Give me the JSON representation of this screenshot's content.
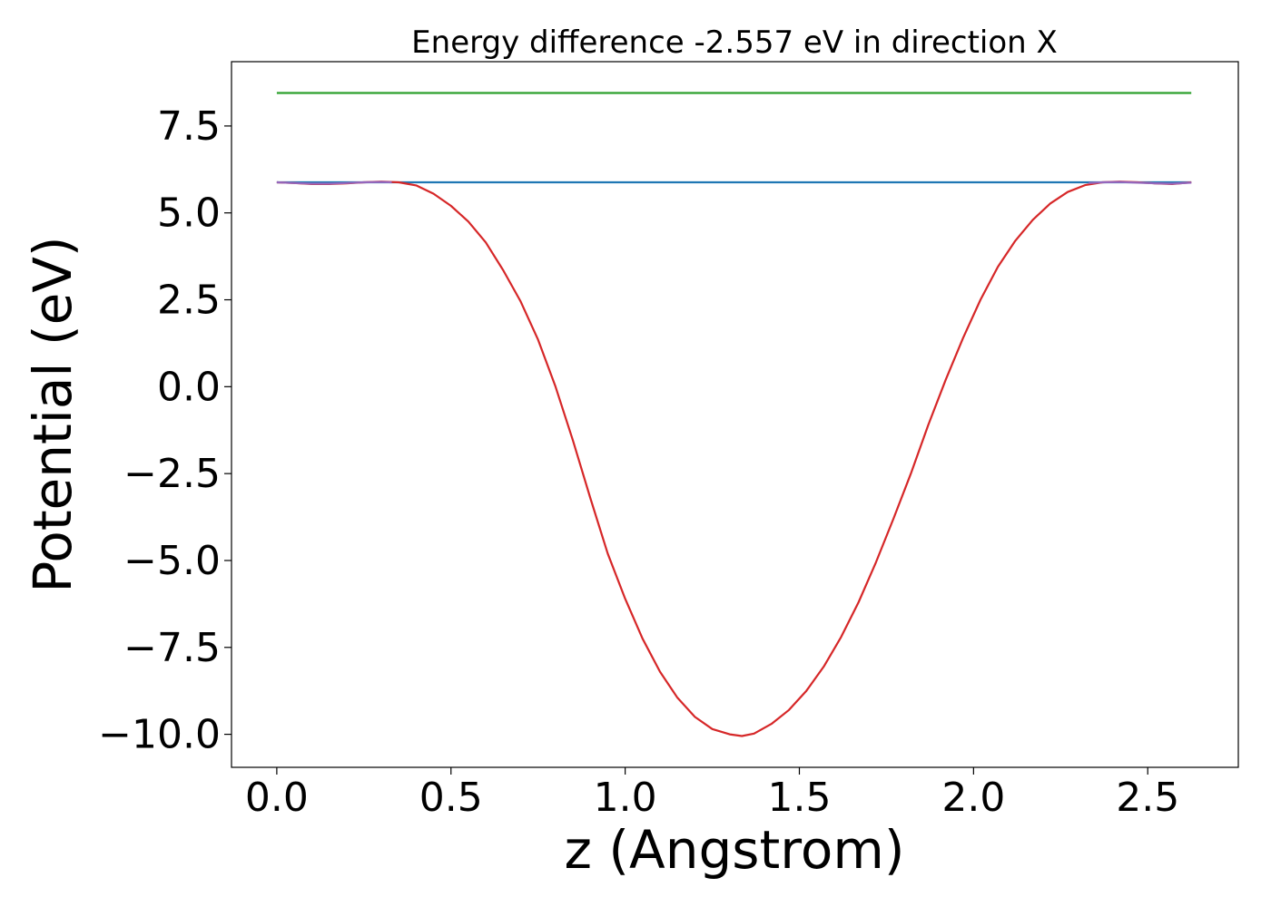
{
  "chart_data": {
    "type": "line",
    "title": "Energy difference -2.557 eV in direction X",
    "xlabel": "z (Angstrom)",
    "ylabel": "Potential (eV)",
    "xlim": [
      -0.13,
      2.76
    ],
    "ylim": [
      -10.95,
      9.35
    ],
    "xticks": [
      0.0,
      0.5,
      1.0,
      1.5,
      2.0,
      2.5
    ],
    "xtick_labels": [
      "0.0",
      "0.5",
      "1.0",
      "1.5",
      "2.0",
      "2.5"
    ],
    "yticks": [
      7.5,
      5.0,
      2.5,
      0.0,
      -2.5,
      -5.0,
      -7.5,
      -10.0
    ],
    "ytick_labels": [
      "7.5",
      "5.0",
      "2.5",
      "0.0",
      "−2.5",
      "−5.0",
      "−7.5",
      "−10.0"
    ],
    "grid": false,
    "legend": "none",
    "series": [
      {
        "color": "#2ca02c",
        "x": [
          0.0,
          2.625
        ],
        "y": [
          8.45,
          8.45
        ]
      },
      {
        "color": "#1f77b4",
        "x": [
          0.0,
          2.625
        ],
        "y": [
          5.88,
          5.88
        ]
      },
      {
        "color": "#d62728",
        "x": [
          0.0,
          0.05,
          0.1,
          0.15,
          0.2,
          0.25,
          0.3,
          0.35,
          0.4,
          0.45,
          0.5,
          0.55,
          0.6,
          0.65,
          0.7,
          0.75,
          0.8,
          0.85,
          0.9,
          0.95,
          1.0,
          1.05,
          1.1,
          1.15,
          1.2,
          1.25,
          1.3,
          1.335,
          1.37,
          1.42,
          1.47,
          1.52,
          1.57,
          1.62,
          1.67,
          1.72,
          1.77,
          1.82,
          1.87,
          1.92,
          1.97,
          2.02,
          2.07,
          2.12,
          2.17,
          2.22,
          2.27,
          2.32,
          2.37,
          2.42,
          2.47,
          2.52,
          2.57,
          2.625
        ],
        "y": [
          5.88,
          5.86,
          5.83,
          5.83,
          5.85,
          5.88,
          5.9,
          5.88,
          5.79,
          5.55,
          5.2,
          4.75,
          4.15,
          3.35,
          2.45,
          1.35,
          0.0,
          -1.55,
          -3.2,
          -4.8,
          -6.1,
          -7.25,
          -8.2,
          -8.95,
          -9.5,
          -9.85,
          -10.0,
          -10.05,
          -9.98,
          -9.7,
          -9.3,
          -8.75,
          -8.05,
          -7.2,
          -6.2,
          -5.05,
          -3.8,
          -2.5,
          -1.1,
          0.2,
          1.4,
          2.5,
          3.45,
          4.2,
          4.8,
          5.27,
          5.6,
          5.8,
          5.88,
          5.9,
          5.88,
          5.85,
          5.83,
          5.88
        ]
      },
      {
        "color": "#9467bd",
        "x": [
          0.0,
          0.05,
          0.1,
          0.15,
          0.2,
          0.25,
          0.3,
          0.33
        ],
        "y": [
          5.88,
          5.86,
          5.84,
          5.84,
          5.86,
          5.88,
          5.89,
          5.88
        ]
      },
      {
        "color": "#9467bd",
        "x": [
          2.33,
          2.37,
          2.42,
          2.47,
          2.52,
          2.57,
          2.625
        ],
        "y": [
          5.86,
          5.88,
          5.89,
          5.87,
          5.85,
          5.84,
          5.87
        ]
      }
    ]
  }
}
